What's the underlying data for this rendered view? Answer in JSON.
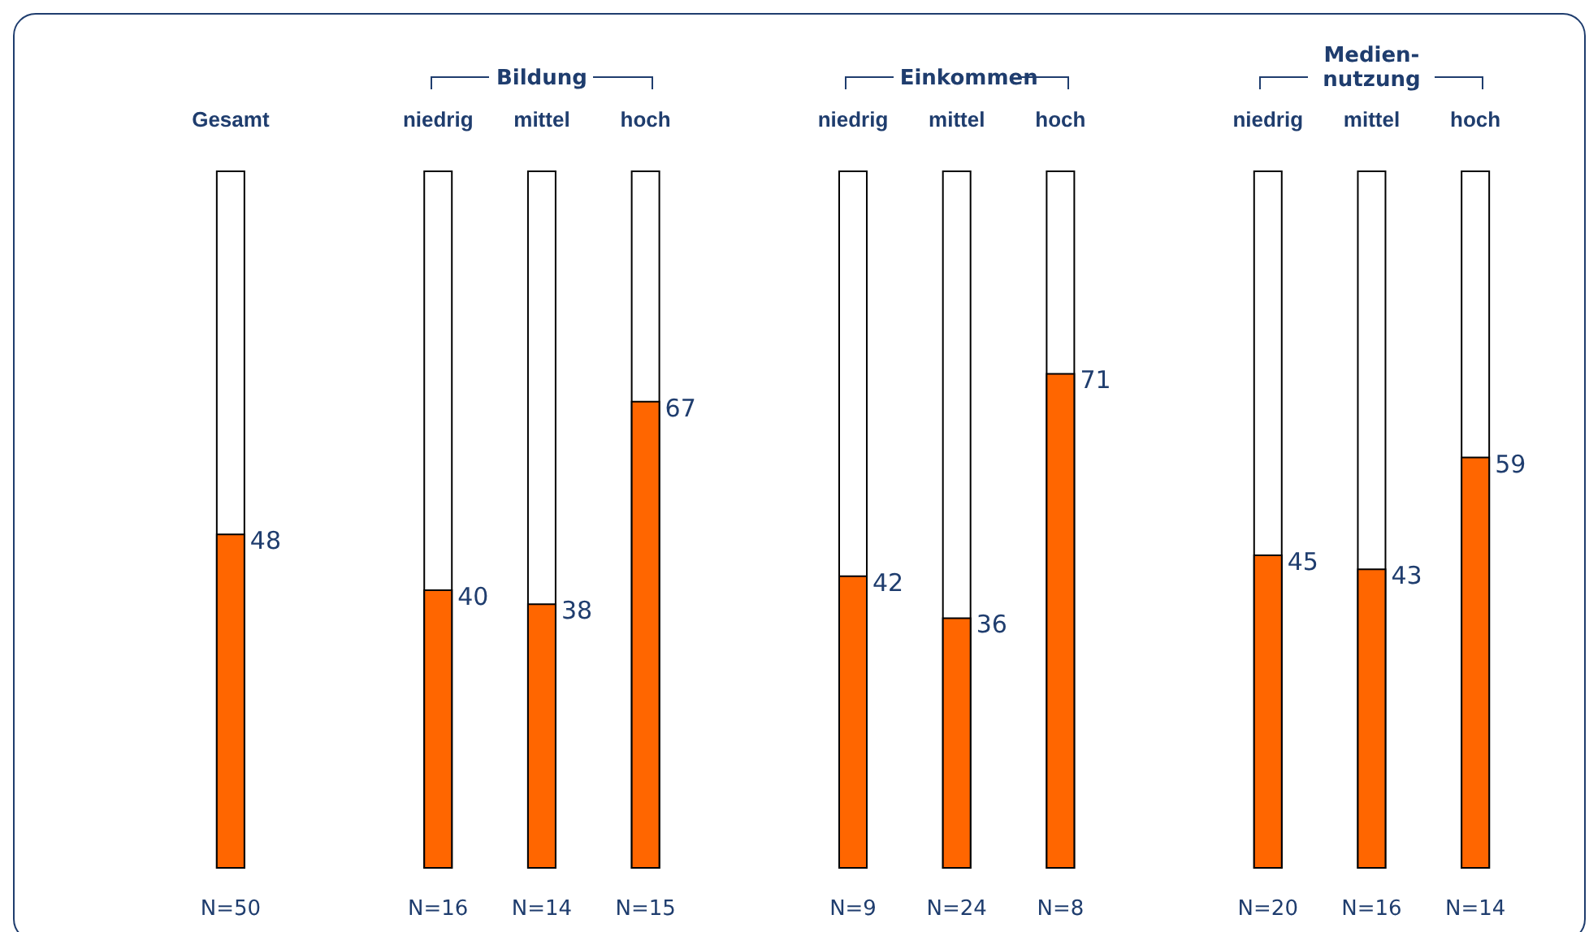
{
  "chart_data": {
    "type": "bar",
    "categories": [
      "Gesamt",
      null,
      "niedrig",
      "mittel",
      "hoch",
      null,
      "niedrig",
      "mittel",
      "hoch",
      null,
      "niedrig",
      "mittel",
      "hoch"
    ],
    "series": [
      {
        "color": "#ff6600",
        "values": [
          48,
          null,
          40,
          38,
          67,
          null,
          42,
          36,
          71,
          null,
          45,
          43,
          59
        ],
        "value_labels": [
          "48",
          null,
          "40",
          "38",
          "67",
          null,
          "42",
          "36",
          "71",
          null,
          "45",
          "43",
          "59"
        ]
      }
    ],
    "ylim": [
      0,
      100
    ],
    "tick_labels": "x",
    "annotations": [
      "Bildung",
      "Einkommen",
      "Medien-nutzung",
      "N=50",
      "N=16",
      "N=14",
      "N=15",
      "N=9",
      "N=24",
      "N=8",
      "N=20",
      "N=16",
      "N=14"
    ]
  }
}
